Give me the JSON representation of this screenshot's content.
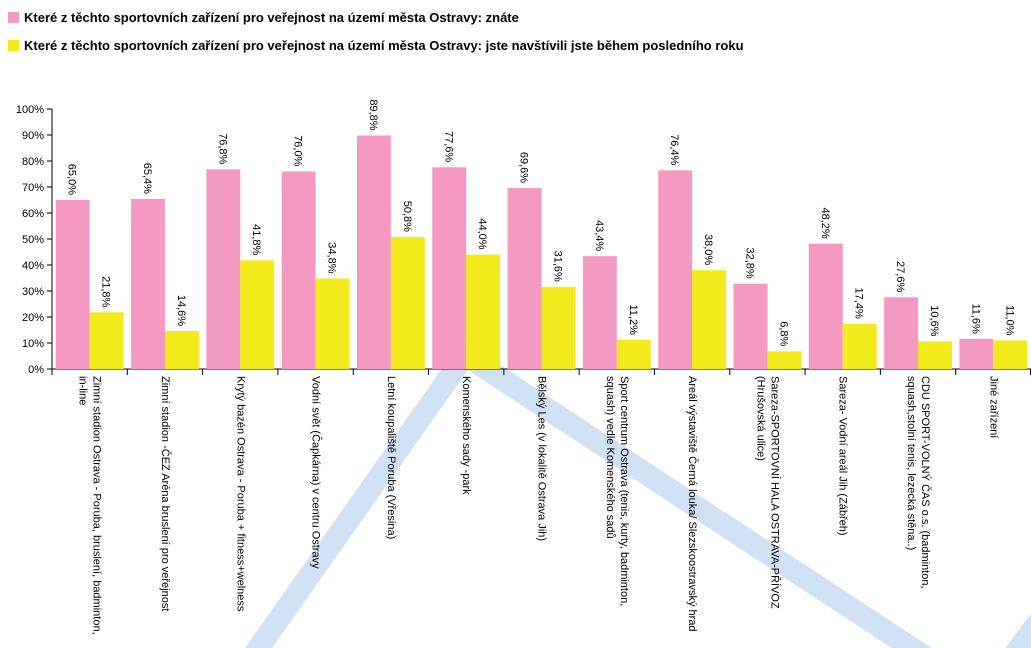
{
  "chart_data": {
    "type": "bar",
    "categories": [
      "Zimní stadion Ostrava - Poruba, bruslení, badminton, in-line",
      "Zimní stadion -ČEZ Aréna bruslení pro veřejnost",
      "Krytý bazén Ostrava - Poruba + fitness+welness",
      "Vodní svět (Čapkárna) v centru Ostravy",
      "Letní koupaliště Poruba (Vřesina)",
      "Komenského sady -park",
      "Bělský Les (v lokalitě Ostrava Jih)",
      "Sport centrum Ostrava (tenis, kurty, badminton, squash) vedle Komenského sadů",
      "Areál výstaviště Černá louka/ Slezskoostravský hrad",
      "Sareza-SPORTOVNÍ HALA OSTRAVA-PŘÍVOZ (Hrušovská ulice)",
      "Sareza- Vodní areál Jih (Zábřeh)",
      "CDU SPORT-VOLNÝ ČAS o.s. (badminton, squash,stolní tenis, lezecká stěna..)",
      "Jiné zařízení"
    ],
    "series": [
      {
        "name": "Které z těchto sportovních zařízení pro veřejnost na území města Ostravy: znáte",
        "color": "#f49ac2",
        "values": [
          65.0,
          65.4,
          76.8,
          76.0,
          89.8,
          77.6,
          69.6,
          43.4,
          76.4,
          32.8,
          48.2,
          27.6,
          11.6
        ],
        "value_labels": [
          "65,0%",
          "65,4%",
          "76,8%",
          "76,0%",
          "89,8%",
          "77,6%",
          "69,6%",
          "43,4%",
          "76,4%",
          "32,8%",
          "48,2%",
          "27,6%",
          "11,6%"
        ]
      },
      {
        "name": "Které z těchto sportovních zařízení pro veřejnost na území města Ostravy: jste navštívili jste během posledního roku",
        "color": "#f2ea1b",
        "values": [
          21.8,
          14.6,
          41.8,
          34.8,
          50.8,
          44.0,
          31.6,
          11.2,
          38.0,
          6.8,
          17.4,
          10.6,
          11.0
        ],
        "value_labels": [
          "21,8%",
          "14,6%",
          "41,8%",
          "34,8%",
          "50,8%",
          "44,0%",
          "31,6%",
          "11,2%",
          "38,0%",
          "6,8%",
          "17,4%",
          "10,6%",
          "11,0%"
        ]
      }
    ],
    "ylim": [
      0,
      100
    ],
    "yticks": [
      {
        "value": 0,
        "label": "0%"
      },
      {
        "value": 10,
        "label": "10%"
      },
      {
        "value": 20,
        "label": "20%"
      },
      {
        "value": 30,
        "label": "30%"
      },
      {
        "value": 40,
        "label": "40%"
      },
      {
        "value": 50,
        "label": "50%"
      },
      {
        "value": 60,
        "label": "60%"
      },
      {
        "value": 70,
        "label": "70%"
      },
      {
        "value": 80,
        "label": "80%"
      },
      {
        "value": 90,
        "label": "90%"
      },
      {
        "value": 100,
        "label": "100%"
      }
    ],
    "legend": "top-left"
  }
}
